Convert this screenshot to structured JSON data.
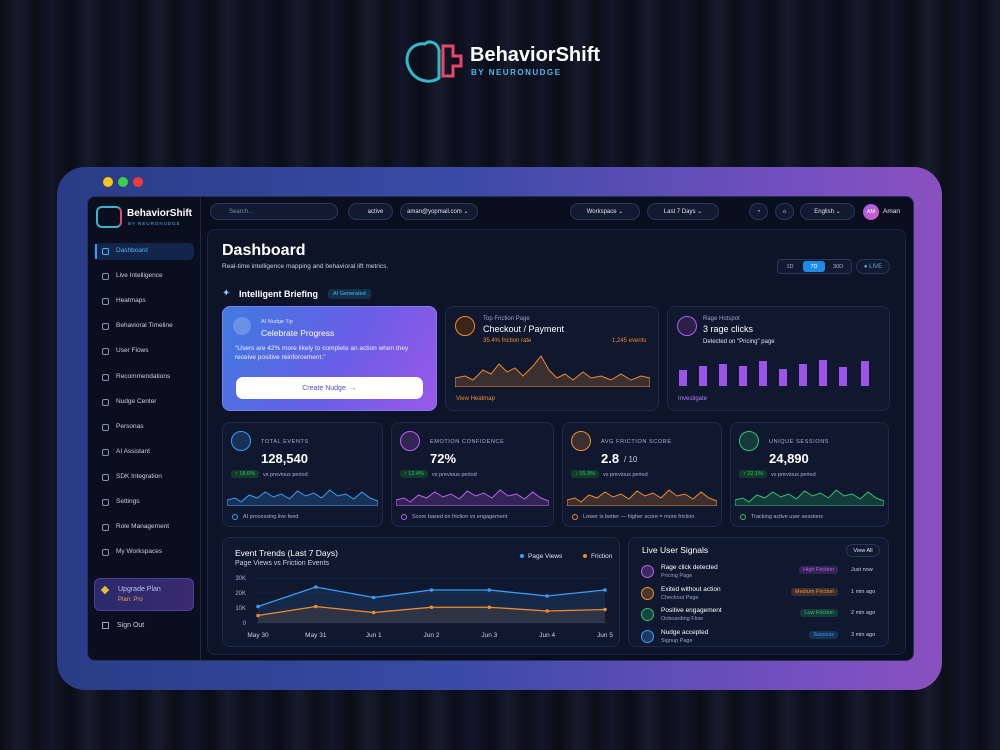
{
  "logo": {
    "name": "BehaviorShift",
    "tagline": "BY NEURONUDGE"
  },
  "sidebar": {
    "brand": "BehaviorShift",
    "tagline": "BY NEURONUDGE",
    "nav": [
      "Dashboard",
      "Live Intelligence",
      "Heatmaps",
      "Behavioral Timeline",
      "User Flows",
      "Recommendations",
      "Nudge Center",
      "Personas",
      "AI Assistant",
      "SDK Integration",
      "Settings",
      "Role Management",
      "My Workspaces"
    ],
    "upgrade": {
      "title": "Upgrade Plan",
      "plan": "Plan: Pro"
    },
    "signout": "Sign Out"
  },
  "topbar": {
    "search": "Search...",
    "status": "active",
    "email": "aman@yopmail.com",
    "workspace": "Workspace",
    "range": "Last 7 Days",
    "language": "English",
    "initials": "AM",
    "user": "Aman"
  },
  "header": {
    "title": "Dashboard",
    "subtitle": "Real-time intelligence mapping and behavioral lift metrics.",
    "periods": [
      "1D",
      "7D",
      "30D"
    ],
    "live": "LIVE"
  },
  "briefing": {
    "title": "Intelligent Briefing",
    "badge": "AI Generated"
  },
  "tip": {
    "label": "AI Nudge Tip",
    "title": "Celebrate Progress",
    "quote": "\"Users are 42% more likely to complete an action when they receive positive reinforcement.\"",
    "button": "Create Nudge"
  },
  "friction": {
    "label": "Top Friction Page",
    "title": "Checkout / Payment",
    "rate": "35.4% friction rate",
    "events": "1,245 events",
    "link": "View Heatmap"
  },
  "rage": {
    "label": "Rage Hotspot",
    "title": "3 rage clicks",
    "detail": "Detected on \"Pricing\" page",
    "link": "Investigate"
  },
  "metrics": [
    {
      "label": "TOTAL EVENTS",
      "value": "128,540",
      "delta": "↑ 18.6%",
      "compare": "vs previous period",
      "footer": "AI processing live feed"
    },
    {
      "label": "EMOTION CONFIDENCE",
      "value": "72%",
      "delta": "↑ 12.4%",
      "compare": "vs previous period",
      "footer": "Score based on friction vs engagement"
    },
    {
      "label": "AVG FRICTION SCORE",
      "value": "2.8",
      "suffix": "/ 10",
      "delta": "↓ 15.3%",
      "compare": "vs previous period",
      "footer": "Lower is better — higher score = more friction"
    },
    {
      "label": "UNIQUE SESSIONS",
      "value": "24,890",
      "delta": "↑ 22.1%",
      "compare": "vs previous period",
      "footer": "Tracking active user sessions"
    }
  ],
  "chart_data": {
    "type": "line",
    "title": "Event Trends (Last 7 Days)",
    "subtitle": "Page Views vs Friction Events",
    "categories": [
      "May 30",
      "May 31",
      "Jun 1",
      "Jun 2",
      "Jun 3",
      "Jun 4",
      "Jun 5"
    ],
    "series": [
      {
        "name": "Page Views",
        "color": "#3b9cf5",
        "values": [
          11000,
          24000,
          17000,
          22000,
          22000,
          18000,
          22000
        ]
      },
      {
        "name": "Friction",
        "color": "#f08a2c",
        "values": [
          5000,
          11000,
          7000,
          10500,
          10500,
          8000,
          9000
        ]
      }
    ],
    "ylim": [
      0,
      30000
    ],
    "yticks": [
      0,
      {
        "value": 10000,
        "label": "10K"
      },
      {
        "value": 20000,
        "label": "20K"
      },
      {
        "value": 30000,
        "label": "30K"
      }
    ],
    "grid": true
  },
  "signals": {
    "title": "Live User Signals",
    "button": "View All",
    "items": [
      {
        "title": "Rage click detected",
        "page": "Pricing Page",
        "badge": "High Friction",
        "time": "Just now",
        "color": "#c05cf0"
      },
      {
        "title": "Exited without action",
        "page": "Checkout Page",
        "badge": "Medium Friction",
        "time": "1 min ago",
        "color": "#f08a2c"
      },
      {
        "title": "Positive engagement",
        "page": "Onboarding Flow",
        "badge": "Low Friction",
        "time": "2 min ago",
        "color": "#2fc46a"
      },
      {
        "title": "Nudge accepted",
        "page": "Signup Page",
        "badge": "Success",
        "time": "3 min ago",
        "color": "#3b9cf5"
      }
    ]
  }
}
